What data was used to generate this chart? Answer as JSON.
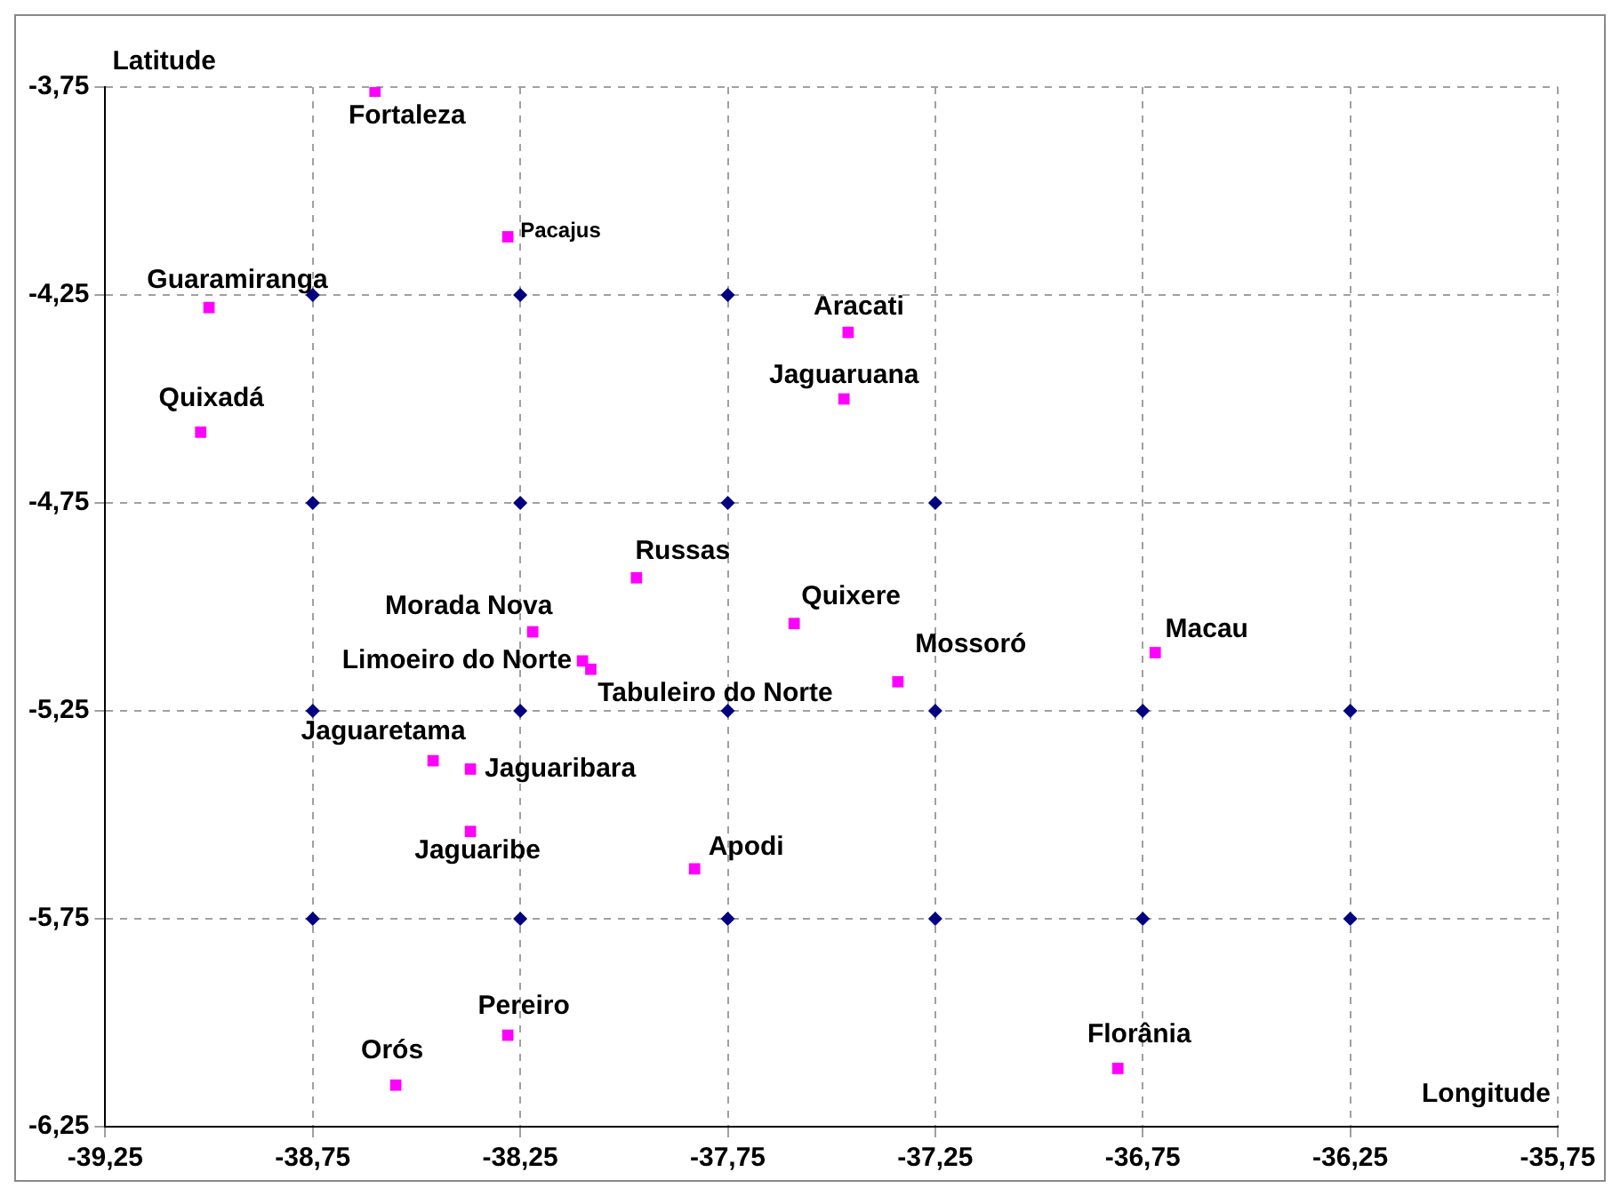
{
  "chart_data": {
    "type": "scatter",
    "xlabel": "Longitude",
    "ylabel": "Latitude",
    "xlim": [
      -39.25,
      -35.75
    ],
    "ylim": [
      -6.25,
      -3.75
    ],
    "xticks": [
      {
        "value": -39.25,
        "label": "-39,25"
      },
      {
        "value": -38.75,
        "label": "-38,75"
      },
      {
        "value": -38.25,
        "label": "-38,25"
      },
      {
        "value": -37.75,
        "label": "-37,75"
      },
      {
        "value": -37.25,
        "label": "-37,25"
      },
      {
        "value": -36.75,
        "label": "-36,75"
      },
      {
        "value": -36.25,
        "label": "-36,25"
      },
      {
        "value": -35.75,
        "label": "-35,75"
      }
    ],
    "yticks": [
      {
        "value": -6.25,
        "label": "-6,25"
      },
      {
        "value": -5.75,
        "label": "-5,75"
      },
      {
        "value": -5.25,
        "label": "-5,25"
      },
      {
        "value": -4.75,
        "label": "-4,75"
      },
      {
        "value": -4.25,
        "label": "-4,25"
      },
      {
        "value": -3.75,
        "label": "-3,75"
      }
    ],
    "grid": true,
    "legend": false,
    "series": [
      {
        "color": "#000080",
        "marker": "diamond",
        "x": [
          -38.75,
          -38.25,
          -37.75,
          -38.75,
          -38.25,
          -37.75,
          -37.25,
          -38.75,
          -38.25,
          -37.75,
          -37.25,
          -36.75,
          -36.25,
          -38.75,
          -38.25,
          -37.75,
          -37.25,
          -36.75,
          -36.25
        ],
        "values": [
          -4.25,
          -4.25,
          -4.25,
          -4.75,
          -4.75,
          -4.75,
          -4.75,
          -5.25,
          -5.25,
          -5.25,
          -5.25,
          -5.25,
          -5.25,
          -5.75,
          -5.75,
          -5.75,
          -5.75,
          -5.75,
          -5.75
        ]
      },
      {
        "name": "Fortaleza",
        "color": "#ff00ff",
        "marker": "square",
        "x": [
          -38.6
        ],
        "values": [
          -3.76
        ]
      },
      {
        "name": "Pacajus",
        "color": "#ff00ff",
        "marker": "square",
        "x": [
          -38.28
        ],
        "values": [
          -4.11
        ]
      },
      {
        "name": "Guaramiranga",
        "color": "#ff00ff",
        "marker": "square",
        "x": [
          -39.0
        ],
        "values": [
          -4.28
        ]
      },
      {
        "name": "Aracati",
        "color": "#ff00ff",
        "marker": "square",
        "x": [
          -37.46
        ],
        "values": [
          -4.34
        ]
      },
      {
        "name": "Jaguaruana",
        "color": "#ff00ff",
        "marker": "square",
        "x": [
          -37.47
        ],
        "values": [
          -4.5
        ]
      },
      {
        "name": "Quixadá",
        "color": "#ff00ff",
        "marker": "square",
        "x": [
          -39.02
        ],
        "values": [
          -4.58
        ]
      },
      {
        "name": "Russas",
        "color": "#ff00ff",
        "marker": "square",
        "x": [
          -37.97
        ],
        "values": [
          -4.93
        ]
      },
      {
        "name": "Quixere",
        "color": "#ff00ff",
        "marker": "square",
        "x": [
          -37.59
        ],
        "values": [
          -5.04
        ]
      },
      {
        "name": "Morada Nova",
        "color": "#ff00ff",
        "marker": "square",
        "x": [
          -38.22
        ],
        "values": [
          -5.06
        ]
      },
      {
        "name": "Macau",
        "color": "#ff00ff",
        "marker": "square",
        "x": [
          -36.72
        ],
        "values": [
          -5.11
        ]
      },
      {
        "name": "Limoeiro do Norte",
        "color": "#ff00ff",
        "marker": "square",
        "x": [
          -38.1
        ],
        "values": [
          -5.13
        ]
      },
      {
        "name": "Tabuleiro do Norte",
        "color": "#ff00ff",
        "marker": "square",
        "x": [
          -38.08
        ],
        "values": [
          -5.15
        ]
      },
      {
        "name": "Mossoró",
        "color": "#ff00ff",
        "marker": "square",
        "x": [
          -37.34
        ],
        "values": [
          -5.18
        ]
      },
      {
        "name": "Jaguaretama",
        "color": "#ff00ff",
        "marker": "square",
        "x": [
          -38.46
        ],
        "values": [
          -5.37
        ]
      },
      {
        "name": "Jaguaribara",
        "color": "#ff00ff",
        "marker": "square",
        "x": [
          -38.37
        ],
        "values": [
          -5.39
        ]
      },
      {
        "name": "Jaguaribe",
        "color": "#ff00ff",
        "marker": "square",
        "x": [
          -38.37
        ],
        "values": [
          -5.54
        ]
      },
      {
        "name": "Apodi",
        "color": "#ff00ff",
        "marker": "square",
        "x": [
          -37.83
        ],
        "values": [
          -5.63
        ]
      },
      {
        "name": "Pereiro",
        "color": "#ff00ff",
        "marker": "square",
        "x": [
          -38.28
        ],
        "values": [
          -6.03
        ]
      },
      {
        "name": "Florânia",
        "color": "#ff00ff",
        "marker": "square",
        "x": [
          -36.81
        ],
        "values": [
          -6.11
        ]
      },
      {
        "name": "Orós",
        "color": "#ff00ff",
        "marker": "square",
        "x": [
          -38.55
        ],
        "values": [
          -6.15
        ]
      }
    ]
  }
}
